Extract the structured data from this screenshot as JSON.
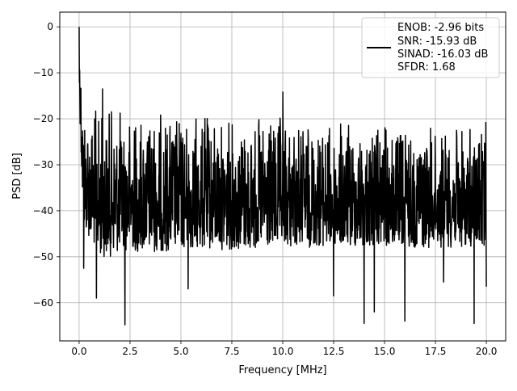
{
  "chart_data": {
    "type": "line",
    "xlabel": "Frequency [MHz]",
    "ylabel": "PSD [dB]",
    "xlim": [
      -0.95,
      20.95
    ],
    "ylim": [
      -68.3,
      3.2
    ],
    "xticks": [
      0.0,
      2.5,
      5.0,
      7.5,
      10.0,
      12.5,
      15.0,
      17.5,
      20.0
    ],
    "xtick_labels": [
      "0.0",
      "2.5",
      "5.0",
      "7.5",
      "10.0",
      "12.5",
      "15.0",
      "17.5",
      "20.0"
    ],
    "yticks": [
      0,
      -10,
      -20,
      -30,
      -40,
      -50,
      -60
    ],
    "ytick_labels": [
      "0",
      "−10",
      "−20",
      "−30",
      "−40",
      "−50",
      "−60"
    ],
    "grid": true,
    "legend_position": "top-right",
    "legend_lines": [
      "ENOB: -2.96 bits",
      "SNR: -15.93 dB",
      "SINAD: -16.03 dB",
      "SFDR: 1.68"
    ],
    "series": [
      {
        "color": "#000000",
        "x_range": [
          0.0,
          20.0
        ],
        "x": [
          0.0,
          0.2,
          0.5,
          1.0,
          1.5,
          2.0,
          2.5,
          3.0,
          4.0,
          5.0,
          6.0,
          7.0,
          8.0,
          9.0,
          10.0,
          11.0,
          12.0,
          13.0,
          14.0,
          15.0,
          16.0,
          17.0,
          18.0,
          19.0,
          20.0
        ],
        "upper_envelope": [
          0.0,
          -14.0,
          -16.0,
          -17.5,
          -17.0,
          -17.0,
          -18.0,
          -18.0,
          -18.0,
          -18.5,
          -18.5,
          -19.0,
          -19.5,
          -19.5,
          -19.5,
          -20.0,
          -20.5,
          -20.5,
          -21.0,
          -21.0,
          -21.5,
          -21.5,
          -21.5,
          -21.5,
          -21.5
        ],
        "lower_envelope": [
          -13.5,
          -44.0,
          -46.0,
          -50.0,
          -50.0,
          -49.0,
          -49.0,
          -49.0,
          -49.0,
          -48.5,
          -48.5,
          -48.5,
          -48.5,
          -48.5,
          -48.0,
          -48.0,
          -48.0,
          -48.0,
          -48.0,
          -48.0,
          -48.0,
          -48.0,
          -48.0,
          -48.0,
          -48.0
        ],
        "peaks": [
          [
            0.0,
            0.0
          ],
          [
            1.15,
            -13.5
          ],
          [
            10.0,
            -14.2
          ],
          [
            19.97,
            -20.8
          ]
        ],
        "dips": [
          [
            0.22,
            -52.5
          ],
          [
            0.85,
            -59.0
          ],
          [
            2.25,
            -64.8
          ],
          [
            5.35,
            -57.0
          ],
          [
            12.5,
            -58.5
          ],
          [
            14.0,
            -64.5
          ],
          [
            14.5,
            -62.0
          ],
          [
            16.0,
            -64.0
          ],
          [
            17.9,
            -55.5
          ],
          [
            19.4,
            -64.5
          ],
          [
            20.0,
            -56.5
          ]
        ]
      }
    ]
  }
}
